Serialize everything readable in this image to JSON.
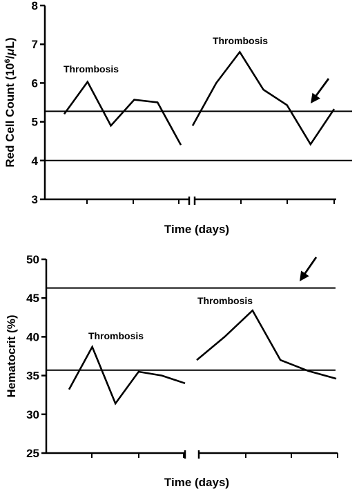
{
  "chart_data": [
    {
      "type": "line",
      "title": "",
      "xlabel": "Time (days)",
      "ylabel": "Red Cell Count (10",
      "ylabel_sup": "6",
      "ylabel_tail": "/",
      "ylabel_mu": "μ",
      "ylabel_end": "L)",
      "ylim": [
        3,
        8
      ],
      "yticks": [
        "3",
        "4",
        "5",
        "6",
        "7",
        "8"
      ],
      "grid": false,
      "axis_break": true,
      "series": [
        {
          "segment": 1,
          "x": [
            0,
            1,
            2,
            3,
            4,
            5
          ],
          "values": [
            5.2,
            6.03,
            4.9,
            5.57,
            5.5,
            4.4
          ]
        },
        {
          "segment": 2,
          "x": [
            0,
            1,
            2,
            3,
            4,
            5,
            6
          ],
          "values": [
            4.9,
            6.0,
            6.8,
            5.83,
            5.43,
            4.42,
            5.33
          ]
        }
      ],
      "reference_lines": [
        5.27,
        4.0
      ],
      "annotations": [
        "Thrombosis",
        "Thrombosis"
      ],
      "arrow": {
        "points_to_y": 5.4
      }
    },
    {
      "type": "line",
      "title": "",
      "xlabel": "Time (days)",
      "ylabel": "Hematocrit (%)",
      "ylim": [
        25,
        50
      ],
      "yticks": [
        "25",
        "30",
        "35",
        "40",
        "45",
        "50"
      ],
      "grid": false,
      "axis_break": true,
      "series": [
        {
          "segment": 1,
          "x": [
            0,
            1,
            2,
            3,
            4,
            5
          ],
          "values": [
            33.2,
            38.7,
            31.4,
            35.5,
            35.0,
            34.0
          ]
        },
        {
          "segment": 2,
          "x": [
            0,
            1,
            2,
            3,
            4,
            5
          ],
          "values": [
            37.0,
            40.0,
            43.4,
            37.0,
            35.6,
            34.6
          ]
        }
      ],
      "reference_lines": [
        46.3,
        35.7
      ],
      "annotations": [
        "Thrombosis",
        "Thrombosis"
      ],
      "arrow": {
        "points_to_y": 46.6
      }
    }
  ]
}
